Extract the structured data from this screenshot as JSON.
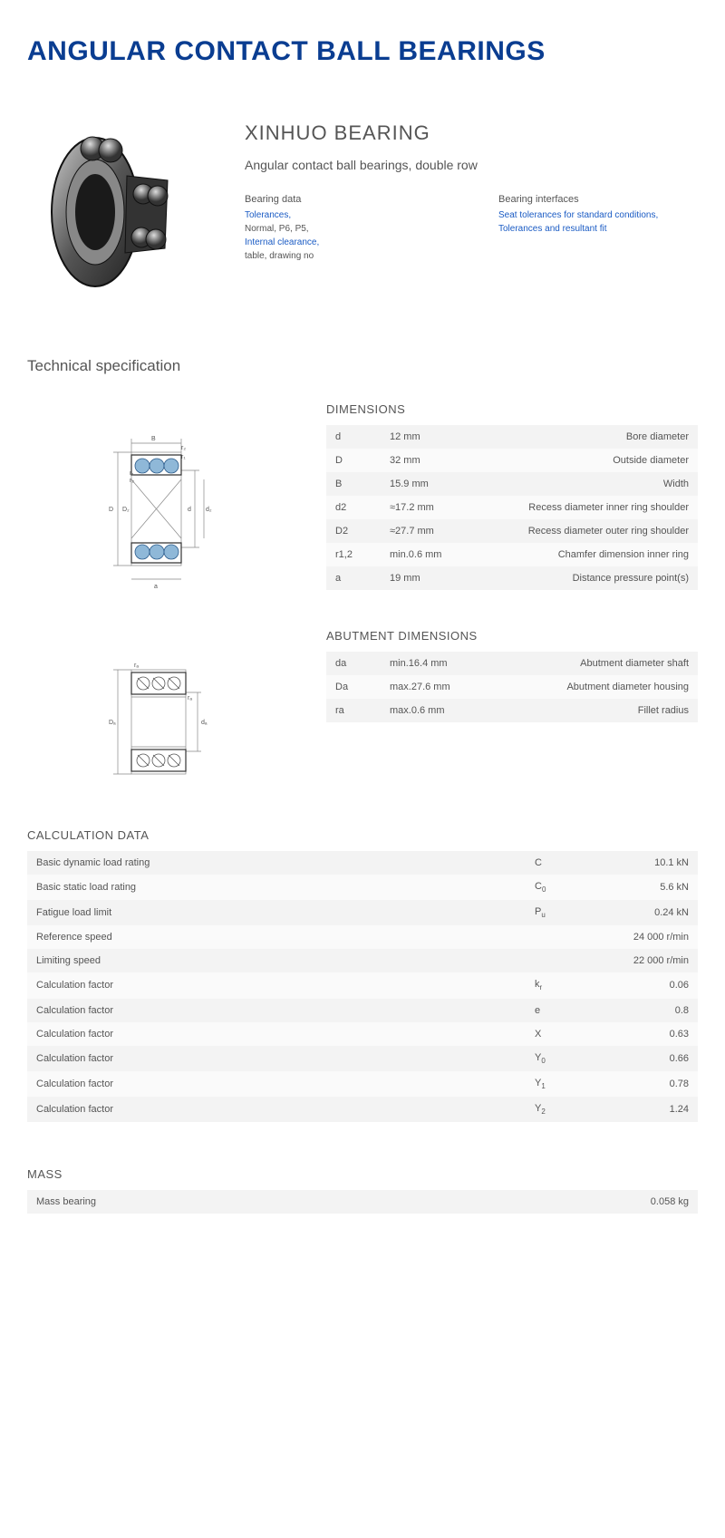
{
  "title": "ANGULAR CONTACT BALL BEARINGS",
  "brand": "XINHUO BEARING",
  "subtitle": "Angular contact ball bearings, double row",
  "bearing_data": {
    "title": "Bearing data",
    "items": [
      {
        "text": "Tolerances,",
        "link": true
      },
      {
        "text": "Normal, P6, P5,",
        "link": false
      },
      {
        "text": "Internal clearance,",
        "link": true
      },
      {
        "text": "table, drawing no",
        "link": false
      }
    ]
  },
  "bearing_interfaces": {
    "title": "Bearing interfaces",
    "items": [
      {
        "text": "Seat tolerances for standard conditions,",
        "link": true
      },
      {
        "text": "Tolerances and resultant fit",
        "link": true
      }
    ]
  },
  "tech_spec_title": "Technical specification",
  "dimensions": {
    "title": "DIMENSIONS",
    "rows": [
      {
        "sym": "d",
        "val": "12  mm",
        "desc": "Bore diameter"
      },
      {
        "sym": "D",
        "val": "32  mm",
        "desc": "Outside diameter"
      },
      {
        "sym": "B",
        "val": "15.9  mm",
        "desc": "Width"
      },
      {
        "sym": "d2",
        "val": "≈17.2  mm",
        "desc": "Recess diameter inner ring shoulder"
      },
      {
        "sym": "D2",
        "val": "≈27.7  mm",
        "desc": "Recess diameter outer ring shoulder"
      },
      {
        "sym": "r1,2",
        "val": "min.0.6  mm",
        "desc": "Chamfer dimension inner ring"
      },
      {
        "sym": "a",
        "val": "19  mm",
        "desc": "Distance pressure point(s)"
      }
    ]
  },
  "abutment": {
    "title": "ABUTMENT DIMENSIONS",
    "rows": [
      {
        "sym": "da",
        "val": "min.16.4  mm",
        "desc": "Abutment diameter shaft"
      },
      {
        "sym": "Da",
        "val": "max.27.6  mm",
        "desc": "Abutment diameter housing"
      },
      {
        "sym": "ra",
        "val": "max.0.6  mm",
        "desc": "Fillet radius"
      }
    ]
  },
  "calculation": {
    "title": "CALCULATION DATA",
    "rows": [
      {
        "label": "Basic dynamic load rating",
        "sym": "C",
        "sub": "",
        "val": "10.1  kN"
      },
      {
        "label": "Basic static load rating",
        "sym": "C",
        "sub": "0",
        "val": "5.6  kN"
      },
      {
        "label": "Fatigue load limit",
        "sym": "P",
        "sub": "u",
        "val": "0.24  kN"
      },
      {
        "label": "Reference speed",
        "sym": "",
        "sub": "",
        "val": "24 000  r/min"
      },
      {
        "label": "Limiting speed",
        "sym": "",
        "sub": "",
        "val": "22 000  r/min"
      },
      {
        "label": "Calculation factor",
        "sym": "k",
        "sub": "r",
        "val": "0.06"
      },
      {
        "label": "Calculation factor",
        "sym": "e",
        "sub": "",
        "val": "0.8"
      },
      {
        "label": "Calculation factor",
        "sym": "X",
        "sub": "",
        "val": "0.63"
      },
      {
        "label": "Calculation factor",
        "sym": "Y",
        "sub": "0",
        "val": "0.66"
      },
      {
        "label": "Calculation factor",
        "sym": "Y",
        "sub": "1",
        "val": "0.78"
      },
      {
        "label": "Calculation factor",
        "sym": "Y",
        "sub": "2",
        "val": "1.24"
      }
    ]
  },
  "mass": {
    "title": "MASS",
    "rows": [
      {
        "label": "Mass bearing",
        "val": "0.058  kg"
      }
    ]
  },
  "colors": {
    "title": "#0a3d91",
    "link": "#1a5bc4",
    "text": "#555555",
    "row_odd": "#f3f3f3",
    "row_even": "#fafafa"
  }
}
